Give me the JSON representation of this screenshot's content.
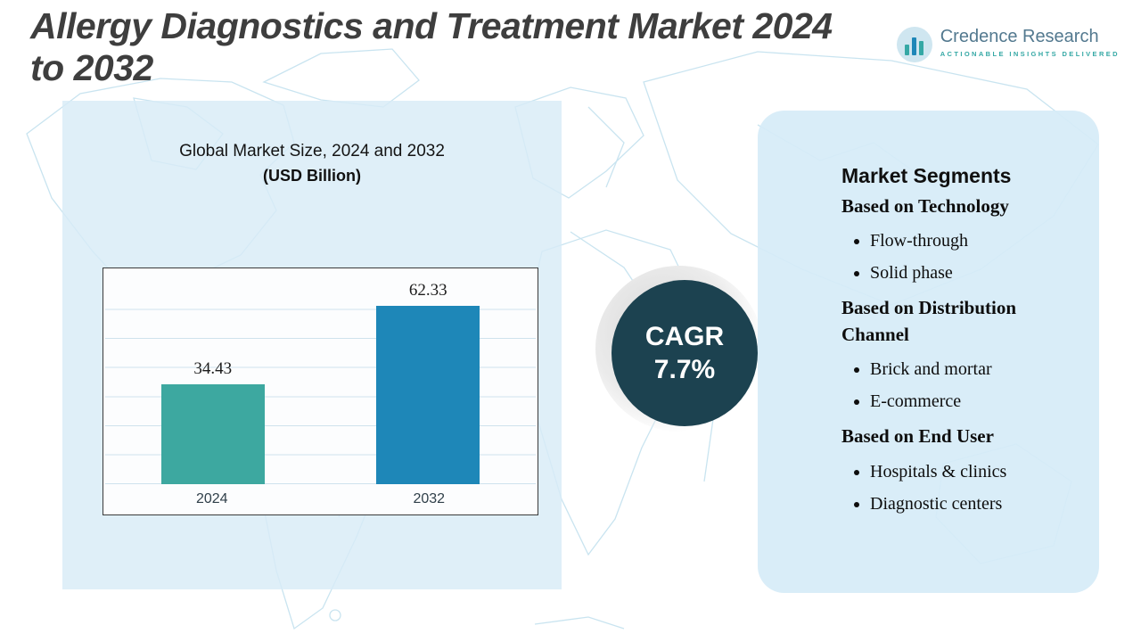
{
  "header": {
    "title_line1": "Allergy Diagnostics and Treatment Market 2024",
    "title_line2": "to 2032"
  },
  "logo": {
    "brand": "Credence Research",
    "tagline": "ACTIONABLE INSIGHTS DELIVERED"
  },
  "chart_data": {
    "type": "bar",
    "title": "Global Market Size, 2024 and 2032",
    "subtitle": "(USD Billion)",
    "categories": [
      "2024",
      "2032"
    ],
    "values": [
      34.43,
      62.33
    ],
    "value_labels": [
      "34.43",
      "62.33"
    ],
    "ylabel": "USD Billion",
    "ylim": [
      0,
      70
    ],
    "grid": true,
    "legend": "none",
    "bar_colors": [
      "#3da8a0",
      "#1e87b8"
    ]
  },
  "cagr": {
    "label": "CAGR",
    "value": "7.7%"
  },
  "segments": {
    "title": "Market Segments",
    "groups": [
      {
        "heading": "Based on Technology",
        "items": [
          "Flow-through",
          "Solid phase"
        ]
      },
      {
        "heading": "Based on Distribution Channel",
        "items": [
          "Brick and mortar",
          "E-commerce"
        ]
      },
      {
        "heading": "Based on End User",
        "items": [
          "Hospitals & clinics",
          "Diagnostic centers"
        ]
      }
    ]
  },
  "colors": {
    "accent_teal": "#3da8a0",
    "accent_blue": "#1e87b8",
    "cagr_circle": "#1c4250",
    "panel_blue": "#d8ecf6",
    "map_line": "#c9e4f0"
  }
}
